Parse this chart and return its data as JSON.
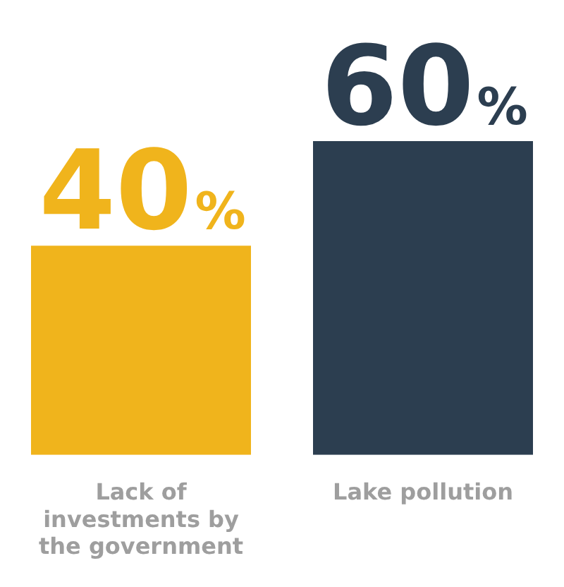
{
  "chart_data": {
    "type": "bar",
    "categories": [
      "Lack of investments by the government",
      "Lake pollution"
    ],
    "values": [
      40,
      60
    ],
    "colors": [
      "#f0b41c",
      "#2c3e50"
    ],
    "value_labels": [
      "40%",
      "60%"
    ],
    "legend": false,
    "grid": false,
    "tick_labels": "x"
  }
}
